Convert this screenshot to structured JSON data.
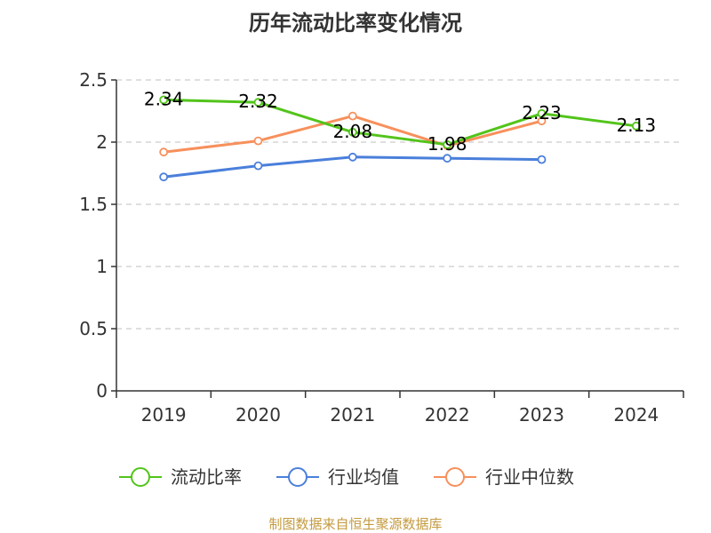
{
  "colors": {
    "current_ratio": "#52c41a",
    "industry_avg": "#4a7fdb",
    "industry_median": "#f7905c",
    "grid": "#cccccc",
    "axis": "#333333",
    "source": "#c49a3f"
  },
  "source_note": "制图数据来自恒生聚源数据库",
  "chart_data": {
    "type": "line",
    "title": "历年流动比率变化情况",
    "xlabel": "",
    "ylabel": "",
    "categories": [
      "2019",
      "2020",
      "2021",
      "2022",
      "2023",
      "2024"
    ],
    "ylim": [
      0,
      2.5
    ],
    "yticks": [
      "0",
      "0.5",
      "1",
      "1.5",
      "2",
      "2.5"
    ],
    "grid": true,
    "legend_position": "bottom",
    "series": [
      {
        "name": "流动比率",
        "values": [
          2.34,
          2.32,
          2.08,
          1.98,
          2.23,
          2.13
        ],
        "labels": [
          "2.34",
          "2.32",
          "2.08",
          "1.98",
          "2.23",
          "2.13"
        ]
      },
      {
        "name": "行业均值",
        "values": [
          1.72,
          1.81,
          1.88,
          1.87,
          1.86,
          null
        ]
      },
      {
        "name": "行业中位数",
        "values": [
          1.92,
          2.01,
          2.21,
          1.97,
          2.17,
          null
        ]
      }
    ]
  }
}
